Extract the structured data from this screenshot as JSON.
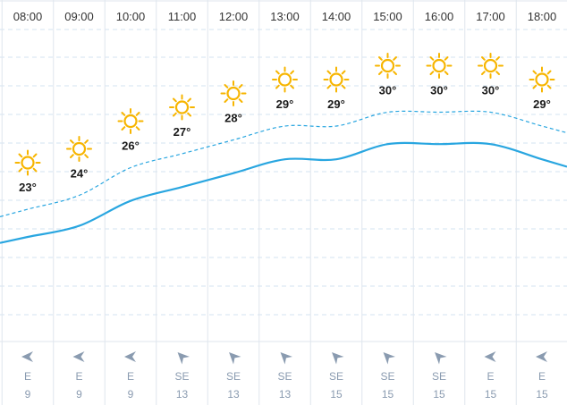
{
  "chart_data": {
    "type": "line",
    "categories": [
      "08:00",
      "09:00",
      "10:00",
      "11:00",
      "12:00",
      "13:00",
      "14:00",
      "15:00",
      "16:00",
      "17:00",
      "18:00"
    ],
    "series": [
      {
        "values": [
          23,
          24,
          26,
          27,
          28,
          29,
          29,
          30,
          30,
          30,
          29
        ]
      },
      {
        "values": [
          21,
          21.8,
          23.6,
          24.6,
          25.6,
          26.6,
          26.6,
          27.7,
          27.7,
          27.7,
          26.6
        ]
      }
    ],
    "temperature_labels": [
      "23°",
      "24°",
      "26°",
      "27°",
      "28°",
      "29°",
      "29°",
      "30°",
      "30°",
      "30°",
      "29°"
    ],
    "weather_icon": "sun-icon",
    "wind": {
      "directions": [
        "E",
        "E",
        "E",
        "SE",
        "SE",
        "SE",
        "SE",
        "SE",
        "SE",
        "E",
        "E"
      ],
      "speeds": [
        "9",
        "9",
        "9",
        "13",
        "13",
        "13",
        "15",
        "15",
        "15",
        "15",
        "15"
      ]
    },
    "grid": true,
    "colors": {
      "line": "#29a6e0",
      "dashed": "#29a6e0",
      "sun": "#f7b500",
      "grid_h": "#d3e3f1",
      "grid_v": "#dfe6ee",
      "arrow": "#8a9bb0"
    }
  }
}
